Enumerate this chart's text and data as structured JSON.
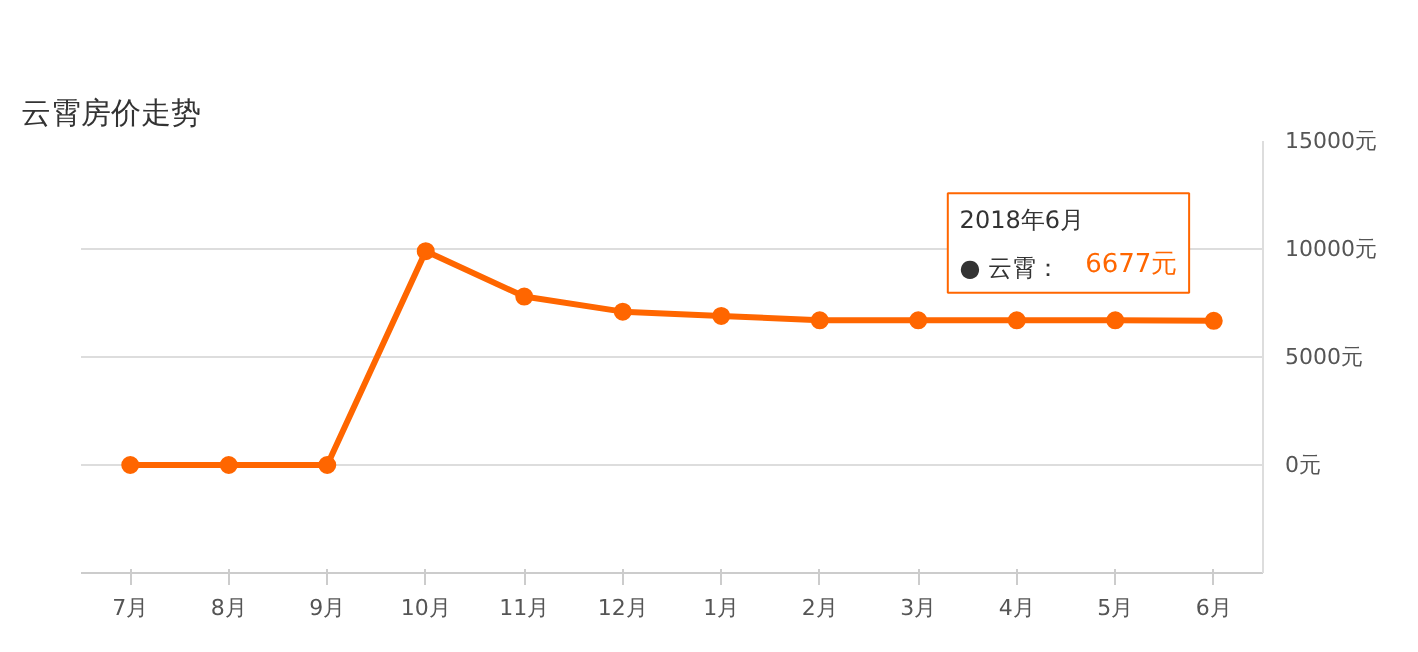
{
  "chart_data": {
    "type": "line",
    "title": "云霄房价走势",
    "categories": [
      "7月",
      "8月",
      "9月",
      "10月",
      "11月",
      "12月",
      "1月",
      "2月",
      "3月",
      "4月",
      "5月",
      "6月"
    ],
    "series": [
      {
        "color": "#ff6600",
        "values": [
          0,
          0,
          0,
          9900,
          7800,
          7100,
          6900,
          6700,
          6700,
          6700,
          6700,
          6677
        ],
        "value_labels": [
          null,
          null,
          null,
          null,
          null,
          null,
          null,
          null,
          null,
          null,
          null,
          "6677元"
        ]
      }
    ],
    "ylim": [
      -5000,
      15000
    ],
    "yticks": [
      {
        "value": 0,
        "label": "0元"
      },
      {
        "value": 5000,
        "label": "5000元"
      },
      {
        "value": 10000,
        "label": "10000元"
      },
      {
        "value": 15000,
        "label": "15000元"
      }
    ],
    "annotations": [
      "2018年6月",
      "● 云霄："
    ],
    "grid": "y",
    "marker": "circle",
    "line_style": "solid",
    "legend": false
  }
}
